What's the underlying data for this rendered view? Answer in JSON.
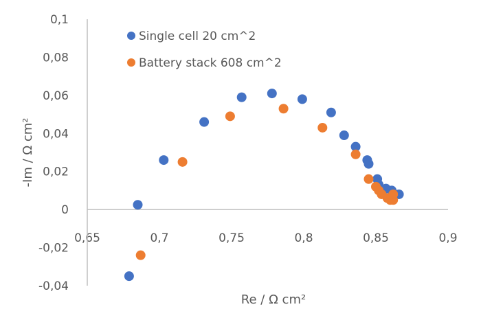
{
  "chart_data": {
    "type": "scatter",
    "title": "",
    "xlabel": "Re / Ω cm²",
    "ylabel": "-Im / Ω cm²",
    "xlim": [
      0.65,
      0.9
    ],
    "ylim": [
      -0.04,
      0.1
    ],
    "x_ticks": [
      "0,65",
      "0,7",
      "0,75",
      "0,8",
      "0,85",
      "0,9"
    ],
    "x_tick_values": [
      0.65,
      0.7,
      0.75,
      0.8,
      0.85,
      0.9
    ],
    "y_ticks": [
      "0,1",
      "0,08",
      "0,06",
      "0,04",
      "0,02",
      "0",
      "-0,02",
      "-0,04"
    ],
    "y_tick_values": [
      0.1,
      0.08,
      0.06,
      0.04,
      0.02,
      0,
      -0.02,
      -0.04
    ],
    "grid": false,
    "legend_position": "top-left inside",
    "series": [
      {
        "name": "Single cell 20 cm^2",
        "color": "#4472C4",
        "points": [
          [
            0.679,
            -0.035
          ],
          [
            0.685,
            0.0025
          ],
          [
            0.703,
            0.026
          ],
          [
            0.731,
            0.046
          ],
          [
            0.757,
            0.059
          ],
          [
            0.778,
            0.061
          ],
          [
            0.799,
            0.058
          ],
          [
            0.819,
            0.051
          ],
          [
            0.828,
            0.039
          ],
          [
            0.836,
            0.033
          ],
          [
            0.844,
            0.026
          ],
          [
            0.845,
            0.024
          ],
          [
            0.851,
            0.016
          ],
          [
            0.852,
            0.013
          ],
          [
            0.857,
            0.011
          ],
          [
            0.861,
            0.01
          ],
          [
            0.866,
            0.008
          ]
        ]
      },
      {
        "name": "Battery stack 608 cm^2",
        "color": "#ED7D31",
        "points": [
          [
            0.687,
            -0.024
          ],
          [
            0.716,
            0.025
          ],
          [
            0.749,
            0.049
          ],
          [
            0.786,
            0.053
          ],
          [
            0.813,
            0.043
          ],
          [
            0.836,
            0.029
          ],
          [
            0.845,
            0.016
          ],
          [
            0.85,
            0.012
          ],
          [
            0.852,
            0.01
          ],
          [
            0.854,
            0.008
          ],
          [
            0.858,
            0.006
          ],
          [
            0.86,
            0.005
          ],
          [
            0.862,
            0.005
          ],
          [
            0.862,
            0.008
          ]
        ]
      }
    ]
  }
}
